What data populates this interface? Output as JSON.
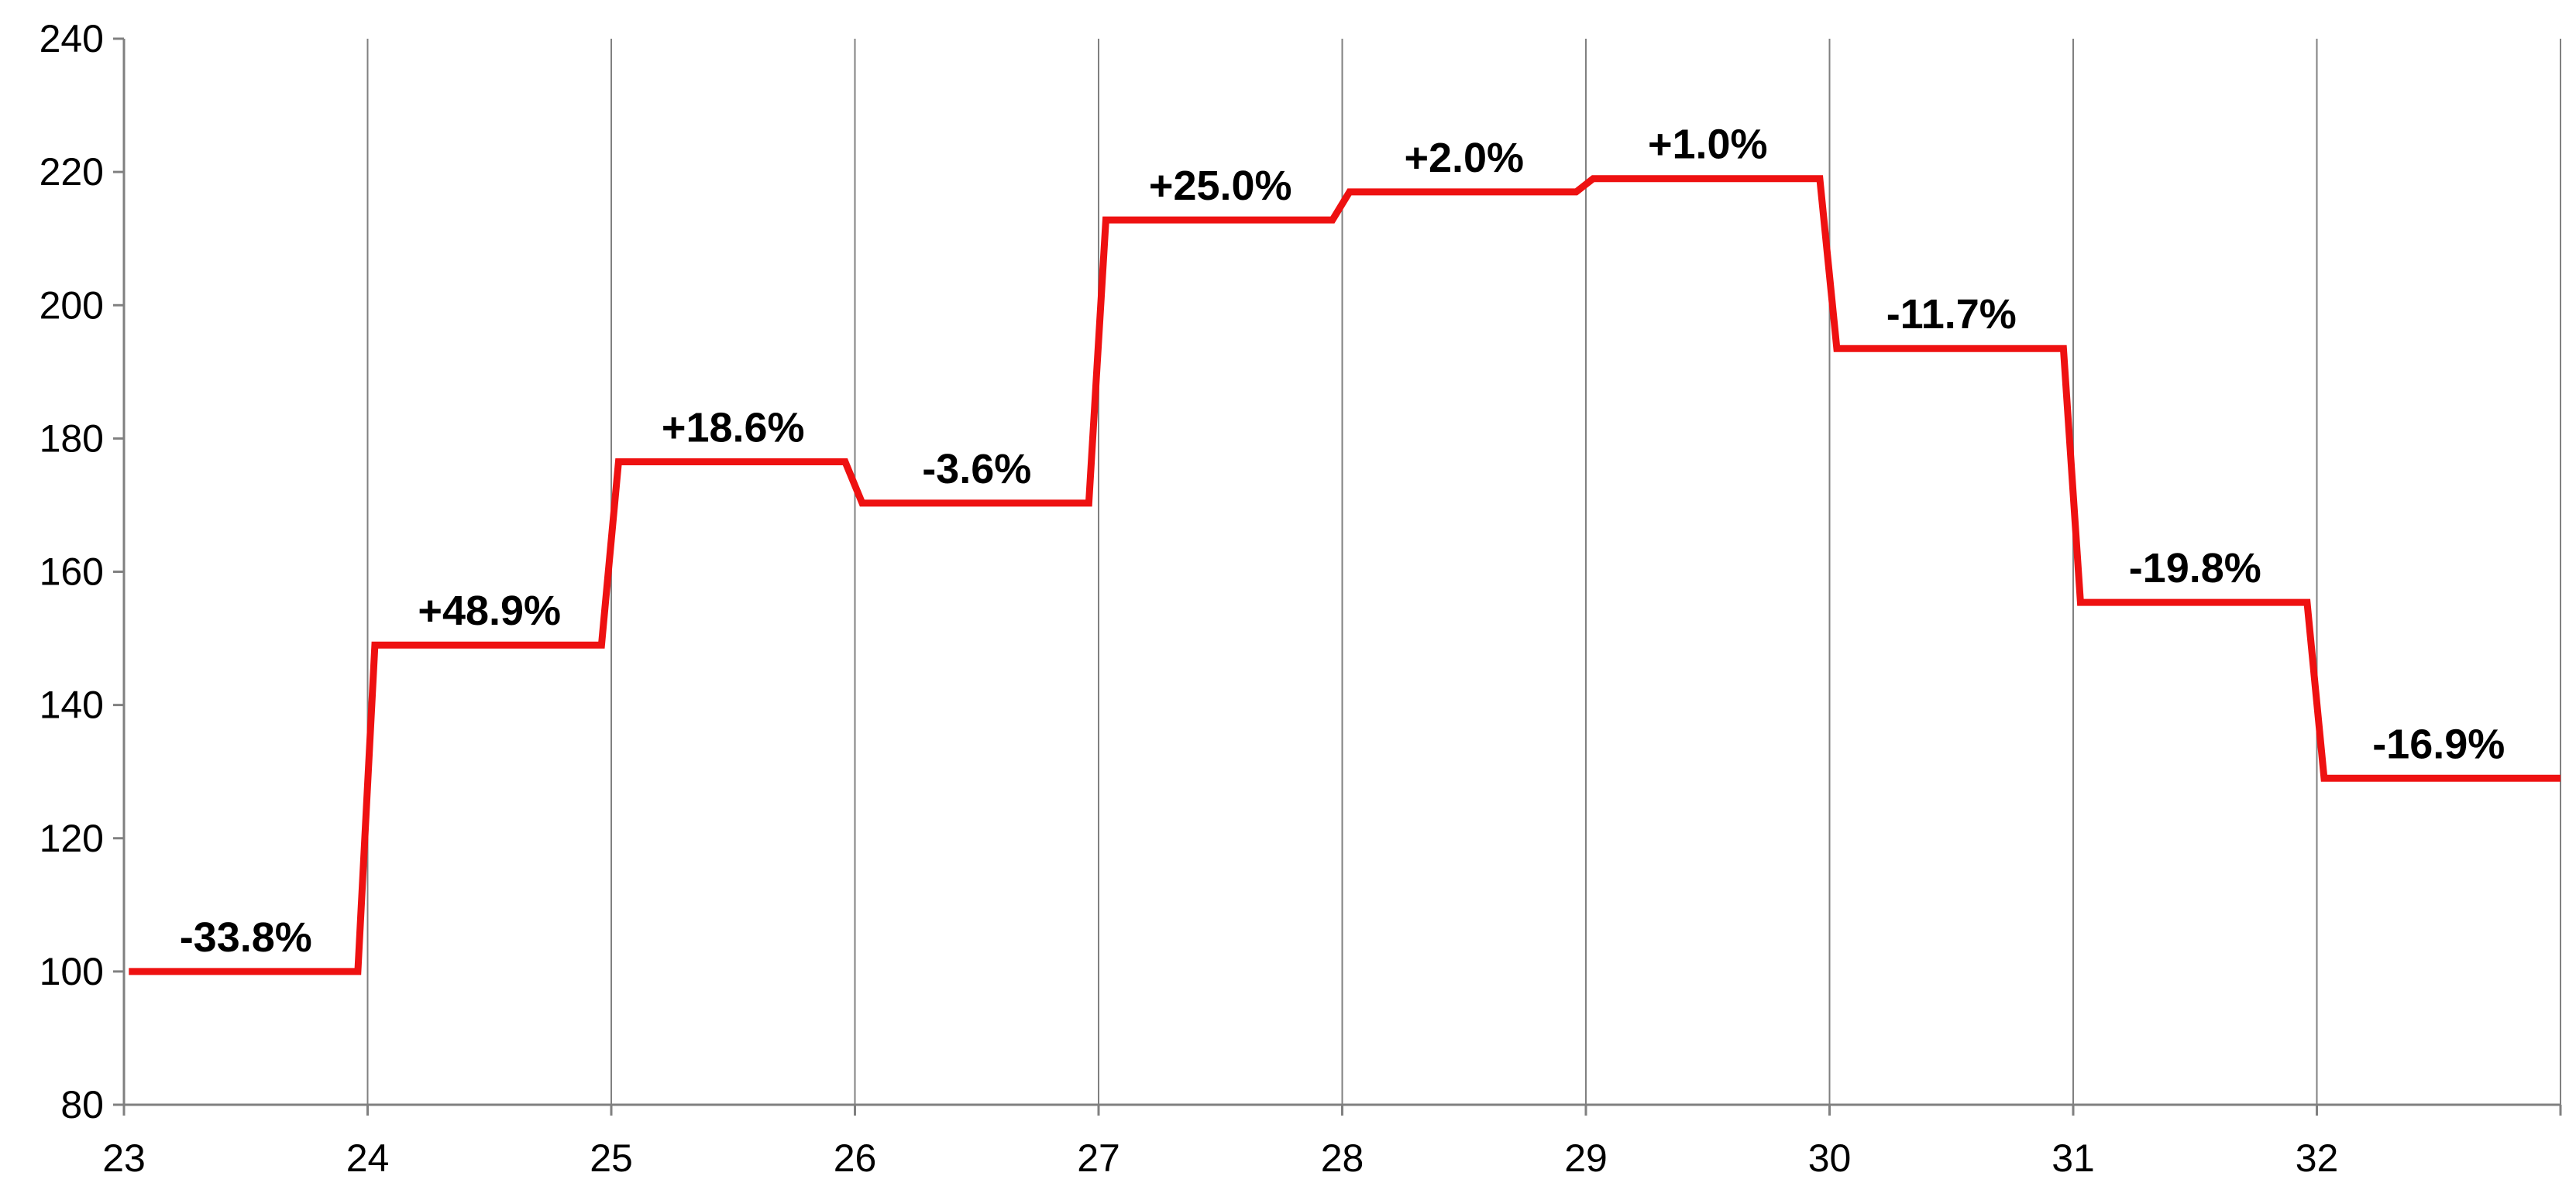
{
  "chart_data": {
    "type": "line",
    "title": "",
    "xlabel": "",
    "ylabel": "",
    "xlim": [
      23,
      33
    ],
    "ylim": [
      80,
      240
    ],
    "x_ticks": [
      23,
      24,
      25,
      26,
      27,
      28,
      29,
      30,
      31,
      32
    ],
    "y_ticks": [
      80,
      100,
      120,
      140,
      160,
      180,
      200,
      220,
      240
    ],
    "grid": "vertical",
    "line_color": "#ee1111",
    "steps": [
      {
        "x_start": 23,
        "x_end": 24,
        "value": 100,
        "label": "-33.8%"
      },
      {
        "x_start": 24,
        "x_end": 25,
        "value": 149,
        "label": "+48.9%"
      },
      {
        "x_start": 25,
        "x_end": 26,
        "value": 176.5,
        "label": "+18.6%"
      },
      {
        "x_start": 26,
        "x_end": 27,
        "value": 170.3,
        "label": "-3.6%"
      },
      {
        "x_start": 27,
        "x_end": 28,
        "value": 212.8,
        "label": "+25.0%"
      },
      {
        "x_start": 28,
        "x_end": 29,
        "value": 217,
        "label": "+2.0%"
      },
      {
        "x_start": 29,
        "x_end": 30,
        "value": 219,
        "label": "+1.0%"
      },
      {
        "x_start": 30,
        "x_end": 31,
        "value": 193.5,
        "label": "-11.7%"
      },
      {
        "x_start": 31,
        "x_end": 32,
        "value": 155.4,
        "label": "-19.8%"
      },
      {
        "x_start": 32,
        "x_end": 33,
        "value": 129,
        "label": "-16.9%"
      }
    ]
  }
}
